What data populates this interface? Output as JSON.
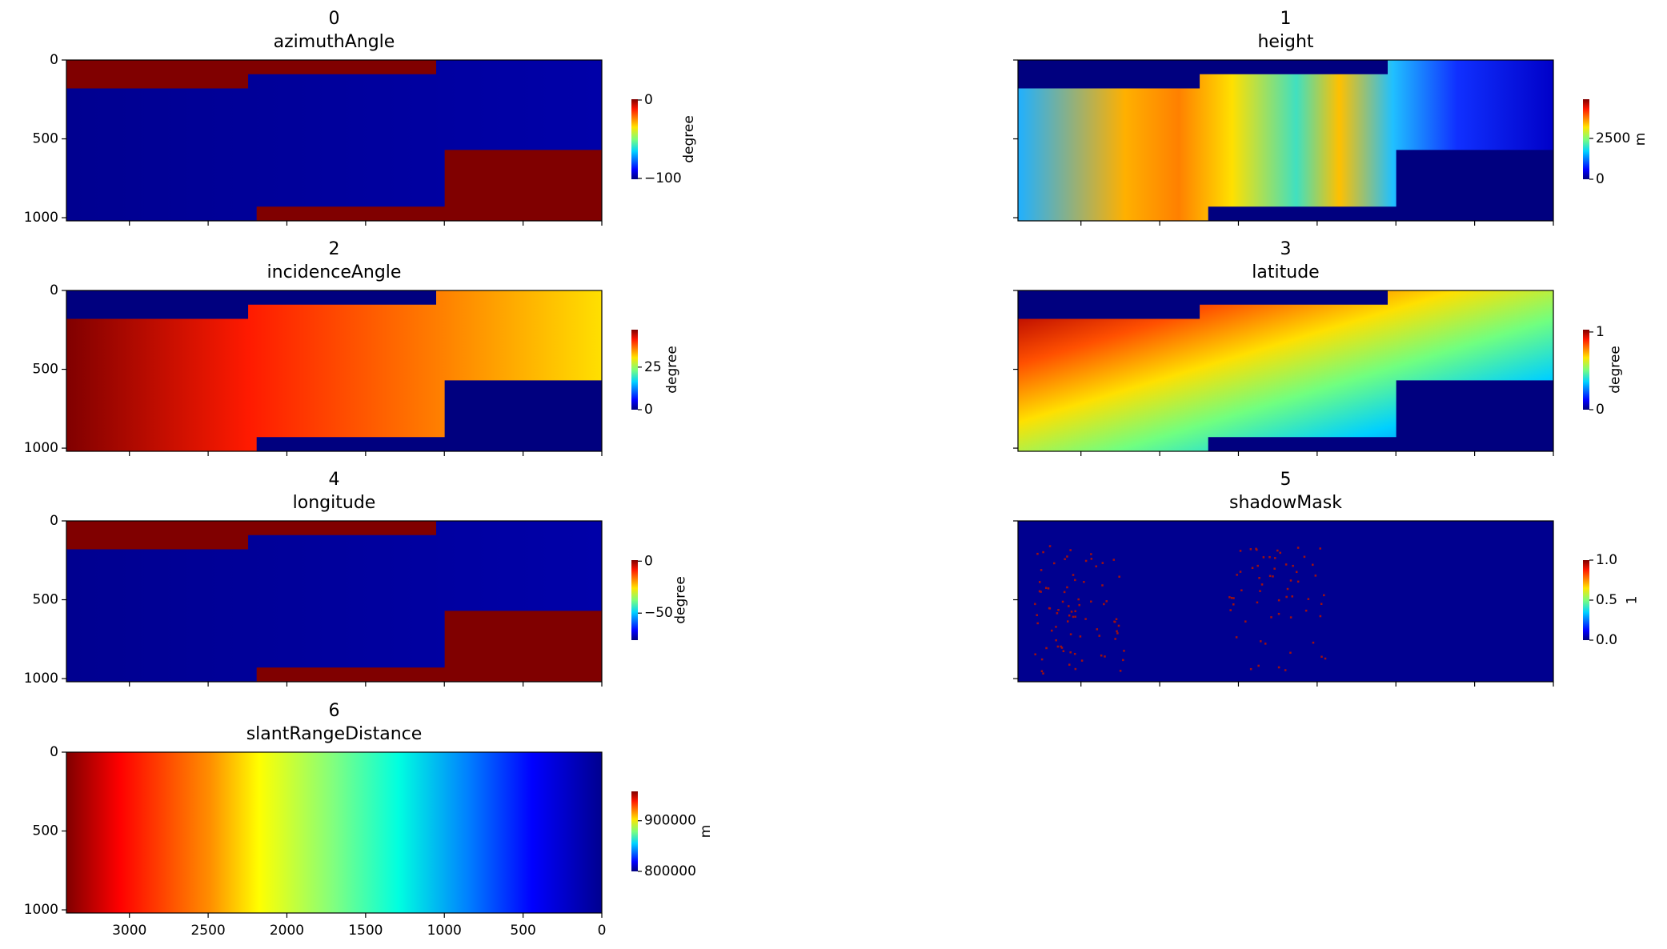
{
  "chart_data": [
    {
      "type": "image",
      "title": "0",
      "subtitle": "azimuthAngle",
      "xlim": [
        3400,
        0
      ],
      "ylim": [
        1020,
        0
      ],
      "xticks": [
        3000,
        2500,
        2000,
        1500,
        1000,
        500,
        0
      ],
      "yticks": [
        0,
        500,
        1000
      ],
      "xticklabels": false,
      "yticklabels": true,
      "colorbar_label": "degree",
      "clim": [
        -101,
        1
      ],
      "cticks": [
        {
          "value": 0,
          "label": "0"
        },
        {
          "value": -100,
          "label": "−100"
        }
      ]
    },
    {
      "type": "image",
      "title": "1",
      "subtitle": "height",
      "xlim": [
        3400,
        0
      ],
      "ylim": [
        1020,
        0
      ],
      "xticks": [
        3000,
        2500,
        2000,
        1500,
        1000,
        500,
        0
      ],
      "yticks": [
        0,
        500,
        1000
      ],
      "xticklabels": false,
      "yticklabels": false,
      "colorbar_label": "m",
      "clim": [
        0,
        4900
      ],
      "cticks": [
        2500,
        0
      ]
    },
    {
      "type": "image",
      "title": "2",
      "subtitle": "incidenceAngle",
      "xlim": [
        3400,
        0
      ],
      "ylim": [
        1020,
        0
      ],
      "xticks": [
        3000,
        2500,
        2000,
        1500,
        1000,
        500,
        0
      ],
      "yticks": [
        0,
        500,
        1000
      ],
      "xticklabels": false,
      "yticklabels": true,
      "colorbar_label": "degree",
      "clim": [
        0,
        47
      ],
      "cticks": [
        25,
        0
      ]
    },
    {
      "type": "image",
      "title": "3",
      "subtitle": "latitude",
      "xlim": [
        3400,
        0
      ],
      "ylim": [
        1020,
        0
      ],
      "xticks": [
        3000,
        2500,
        2000,
        1500,
        1000,
        500,
        0
      ],
      "yticks": [
        0,
        500,
        1000
      ],
      "xticklabels": false,
      "yticklabels": false,
      "colorbar_label": "degree",
      "clim": [
        0,
        1.03
      ],
      "cticks": [
        1,
        0
      ]
    },
    {
      "type": "image",
      "title": "4",
      "subtitle": "longitude",
      "xlim": [
        3400,
        0
      ],
      "ylim": [
        1020,
        0
      ],
      "xticks": [
        3000,
        2500,
        2000,
        1500,
        1000,
        500,
        0
      ],
      "yticks": [
        0,
        500,
        1000
      ],
      "xticklabels": false,
      "yticklabels": true,
      "colorbar_label": "degree",
      "clim": [
        -76,
        1
      ],
      "cticks": [
        0,
        {
          "value": -50,
          "label": "−50"
        }
      ]
    },
    {
      "type": "image",
      "title": "5",
      "subtitle": "shadowMask",
      "xlim": [
        3400,
        0
      ],
      "ylim": [
        1020,
        0
      ],
      "xticks": [
        3000,
        2500,
        2000,
        1500,
        1000,
        500,
        0
      ],
      "yticks": [
        0,
        500,
        1000
      ],
      "xticklabels": false,
      "yticklabels": false,
      "colorbar_label": "1",
      "clim": [
        0,
        1
      ],
      "cticks": [
        {
          "value": 1,
          "label": "1.0"
        },
        {
          "value": 0.5,
          "label": "0.5"
        },
        {
          "value": 0,
          "label": "0.0"
        }
      ]
    },
    {
      "type": "image",
      "title": "6",
      "subtitle": "slantRangeDistance",
      "xlim": [
        3400,
        0
      ],
      "ylim": [
        1020,
        0
      ],
      "xticks": [
        3000,
        2500,
        2000,
        1500,
        1000,
        500,
        0
      ],
      "yticks": [
        0,
        500,
        1000
      ],
      "xticklabels": true,
      "yticklabels": true,
      "colorbar_label": "m",
      "clim": [
        800000,
        958000
      ],
      "cticks": [
        900000,
        800000
      ]
    }
  ]
}
